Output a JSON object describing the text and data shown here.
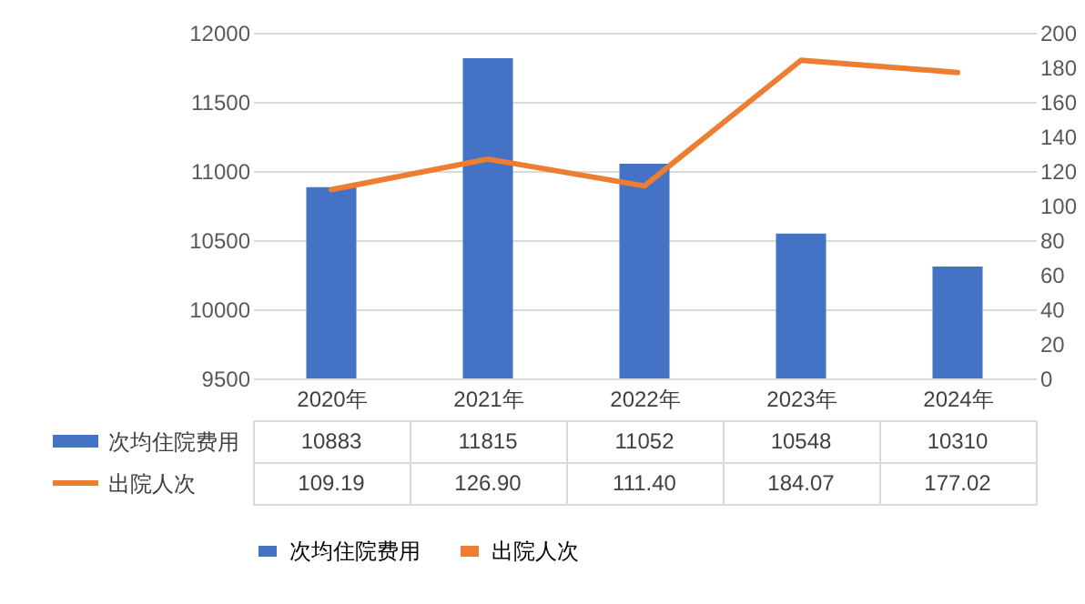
{
  "chart_data": {
    "type": "bar",
    "categories": [
      "2020年",
      "2021年",
      "2022年",
      "2023年",
      "2024年"
    ],
    "series": [
      {
        "name": "次均住院费用",
        "color": "#4472c4",
        "values": [
          10883,
          11815,
          11052,
          10548,
          10310
        ],
        "value_labels": [
          "10883",
          "11815",
          "11052",
          "10548",
          "10310"
        ]
      },
      {
        "name": "出院人次",
        "type": "line",
        "axis": "y2",
        "color": "#ed7d31",
        "values": [
          109.19,
          126.9,
          111.4,
          184.07,
          177.02
        ],
        "value_labels": [
          "109.19",
          "126.90",
          "111.40",
          "184.07",
          "177.02"
        ]
      }
    ],
    "ylim": [
      9500,
      12000
    ],
    "yticks": [
      9500,
      10000,
      10500,
      11000,
      11500,
      12000
    ],
    "y2lim": [
      0,
      200
    ],
    "y2ticks": [
      0,
      20,
      40,
      60,
      80,
      100,
      120,
      140,
      160,
      180,
      200
    ],
    "grid": "y",
    "legend": "bottom",
    "marker": "none",
    "line_style": "solid"
  }
}
